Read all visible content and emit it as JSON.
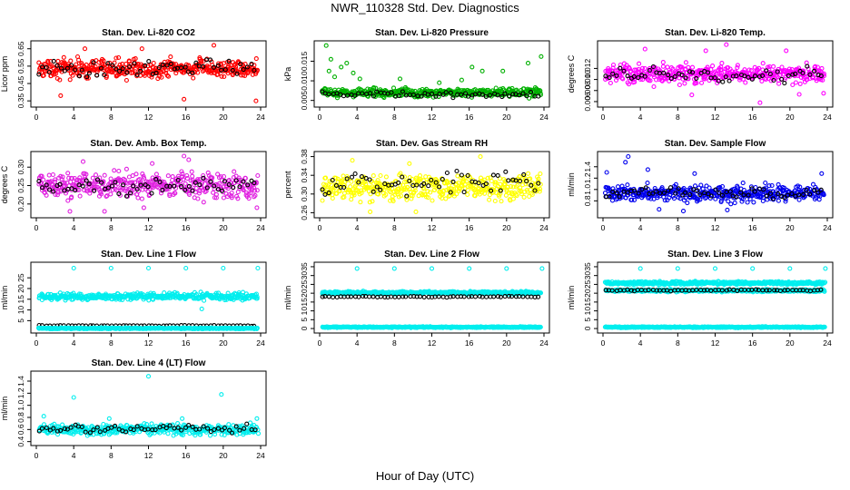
{
  "page": {
    "title": "NWR_110328  Std. Dev. Diagnostics",
    "xlabel": "Hour of Day (UTC)"
  },
  "chart_data": [
    {
      "id": "co2",
      "type": "scatter",
      "title": "Stan. Dev. Li-820 CO2",
      "ylabel": "Licor ppm",
      "xlim": [
        0,
        24
      ],
      "ylim": [
        0.33,
        0.68
      ],
      "xticks": [
        "0",
        "4",
        "8",
        "12",
        "16",
        "20",
        "24"
      ],
      "yticks": [
        "0.35",
        "0.45",
        "0.55",
        "0.65"
      ],
      "series": [
        {
          "color": "#ff0000",
          "band": [
            0.46,
            0.61
          ],
          "outliers": [
            [
              5.2,
              0.65
            ],
            [
              11.3,
              0.65
            ],
            [
              15.8,
              0.36
            ],
            [
              19.0,
              0.67
            ],
            [
              23.5,
              0.35
            ],
            [
              2.6,
              0.38
            ]
          ]
        },
        {
          "color": "#000000",
          "band": [
            0.47,
            0.6
          ],
          "outliers": []
        }
      ]
    },
    {
      "id": "pressure",
      "type": "scatter",
      "title": "Stan. Dev. Li-820 Pressure",
      "ylabel": "kPa",
      "xlim": [
        0,
        24
      ],
      "ylim": [
        0.004,
        0.0195
      ],
      "xticks": [
        "0",
        "4",
        "8",
        "12",
        "16",
        "20",
        "24"
      ],
      "yticks": [
        "0.005",
        "0.010",
        "0.015"
      ],
      "series": [
        {
          "color": "#00b000",
          "band": [
            0.0055,
            0.0085
          ],
          "outliers": [
            [
              0.7,
              0.019
            ],
            [
              1.0,
              0.0125
            ],
            [
              2.3,
              0.0135
            ],
            [
              2.9,
              0.0145
            ],
            [
              3.6,
              0.012
            ],
            [
              1.6,
              0.011
            ],
            [
              4.3,
              0.0105
            ],
            [
              8.6,
              0.0105
            ],
            [
              12.8,
              0.0095
            ],
            [
              15.2,
              0.0102
            ],
            [
              16.3,
              0.0135
            ],
            [
              17.4,
              0.0125
            ],
            [
              19.6,
              0.0125
            ],
            [
              22.3,
              0.0145
            ],
            [
              23.7,
              0.0162
            ],
            [
              1.2,
              0.0155
            ]
          ]
        },
        {
          "color": "#000000",
          "band": [
            0.0055,
            0.0075
          ],
          "outliers": []
        }
      ]
    },
    {
      "id": "temp",
      "type": "scatter",
      "title": "Stan. Dev. Li-820 Temp.",
      "ylabel": "degrees C",
      "xlim": [
        0,
        24
      ],
      "ylim": [
        0.0055,
        0.0165
      ],
      "xticks": [
        "0",
        "4",
        "8",
        "12",
        "16",
        "20",
        "24"
      ],
      "yticks": [
        "0.006",
        "0.008",
        "0.010",
        "0.012"
      ],
      "series": [
        {
          "color": "#ff00ff",
          "band": [
            0.0085,
            0.0135
          ],
          "outliers": [
            [
              13.2,
              0.0163
            ],
            [
              16.8,
              0.0058
            ],
            [
              11.0,
              0.0152
            ],
            [
              19.6,
              0.0152
            ],
            [
              9.5,
              0.0072
            ],
            [
              23.6,
              0.0075
            ],
            [
              4.5,
              0.0155
            ],
            [
              21.0,
              0.0073
            ]
          ]
        },
        {
          "color": "#000000",
          "band": [
            0.0088,
            0.0128
          ],
          "outliers": []
        }
      ]
    },
    {
      "id": "ambbox",
      "type": "scatter",
      "title": "Stan. Dev. Amb. Box Temp.",
      "ylabel": "degrees C",
      "xlim": [
        0,
        24
      ],
      "ylim": [
        0.17,
        0.335
      ],
      "xticks": [
        "0",
        "4",
        "8",
        "12",
        "16",
        "20",
        "24"
      ],
      "yticks": [
        "0.20",
        "0.25",
        "0.30"
      ],
      "series": [
        {
          "color": "#e020e0",
          "band": [
            0.2,
            0.3
          ],
          "outliers": [
            [
              15.8,
              0.33
            ],
            [
              16.3,
              0.32
            ],
            [
              5.0,
              0.315
            ],
            [
              12.4,
              0.31
            ],
            [
              3.6,
              0.18
            ],
            [
              7.3,
              0.18
            ],
            [
              11.5,
              0.19
            ],
            [
              23.6,
              0.19
            ]
          ]
        },
        {
          "color": "#000000",
          "band": [
            0.215,
            0.28
          ],
          "outliers": []
        }
      ]
    },
    {
      "id": "rh",
      "type": "scatter",
      "title": "Stan. Dev. Gas Stream RH",
      "ylabel": "percent",
      "xlim": [
        0,
        24
      ],
      "ylim": [
        0.255,
        0.385
      ],
      "xticks": [
        "0",
        "4",
        "8",
        "12",
        "16",
        "20",
        "24"
      ],
      "yticks": [
        "0.26",
        "0.30",
        "0.34",
        "0.38"
      ],
      "series": [
        {
          "color": "#ffff00",
          "band": [
            0.275,
            0.355
          ],
          "outliers": [
            [
              17.2,
              0.38
            ],
            [
              3.5,
              0.372
            ],
            [
              9.6,
              0.365
            ],
            [
              10.3,
              0.262
            ],
            [
              5.4,
              0.262
            ]
          ]
        },
        {
          "color": "#000000",
          "band": [
            0.285,
            0.36
          ],
          "outliers": []
        }
      ]
    },
    {
      "id": "sampleflow",
      "type": "scatter",
      "title": "Stan. Dev. Sample Flow",
      "ylabel": "ml/min",
      "xlim": [
        0,
        24
      ],
      "ylim": [
        0.55,
        1.62
      ],
      "xticks": [
        "0",
        "4",
        "8",
        "12",
        "16",
        "20",
        "24"
      ],
      "yticks": [
        "0.8",
        "1.0",
        "1.2",
        "1.4"
      ],
      "series": [
        {
          "color": "#0000ee",
          "band": [
            0.72,
            1.15
          ],
          "outliers": [
            [
              2.7,
              1.58
            ],
            [
              2.4,
              1.48
            ],
            [
              0.4,
              1.3
            ],
            [
              4.8,
              1.35
            ],
            [
              9.8,
              1.28
            ],
            [
              8.6,
              0.62
            ],
            [
              13.3,
              0.64
            ],
            [
              23.4,
              1.28
            ],
            [
              6.0,
              0.65
            ]
          ]
        },
        {
          "color": "#000000",
          "band": [
            0.8,
            1.08
          ],
          "outliers": []
        }
      ]
    },
    {
      "id": "line1",
      "type": "scatter",
      "title": "Stan. Dev. Line 1 Flow",
      "ylabel": "ml/min",
      "xlim": [
        0,
        24
      ],
      "ylim": [
        0.5,
        31
      ],
      "xticks": [
        "0",
        "4",
        "8",
        "12",
        "16",
        "20",
        "24"
      ],
      "yticks": [
        "5",
        "10",
        "15",
        "20",
        "25"
      ],
      "series": [
        {
          "color": "#00eeee",
          "band": [
            14.0,
            18.5
          ],
          "outliers": [
            [
              4.0,
              29.5
            ],
            [
              8.0,
              29.5
            ],
            [
              12.0,
              29.5
            ],
            [
              16.0,
              29.5
            ],
            [
              20.0,
              29.5
            ],
            [
              23.7,
              29.5
            ],
            [
              17.7,
              10.5
            ]
          ]
        },
        {
          "color": "#000000",
          "band": [
            2.4,
            2.9
          ],
          "outliers": []
        },
        {
          "color": "#00eeee",
          "band": [
            1.0,
            1.8
          ],
          "outliers": []
        }
      ]
    },
    {
      "id": "line2",
      "type": "scatter",
      "title": "Stan. Dev. Line 2 Flow",
      "ylabel": "ml/min",
      "xlim": [
        0,
        24
      ],
      "ylim": [
        -1,
        36
      ],
      "xticks": [
        "0",
        "4",
        "8",
        "12",
        "16",
        "20",
        "24"
      ],
      "yticks": [
        "0",
        "5",
        "10",
        "15",
        "20",
        "25",
        "30",
        "35"
      ],
      "series": [
        {
          "color": "#00eeee",
          "band": [
            19.0,
            21.5
          ],
          "outliers": [
            [
              4.0,
              34.0
            ],
            [
              8.0,
              34.0
            ],
            [
              12.0,
              34.0
            ],
            [
              16.0,
              34.0
            ],
            [
              20.0,
              34.0
            ],
            [
              23.8,
              34.0
            ]
          ]
        },
        {
          "color": "#000000",
          "band": [
            17.5,
            18.5
          ],
          "outliers": []
        },
        {
          "color": "#00eeee",
          "band": [
            0.3,
            1.2
          ],
          "outliers": []
        }
      ]
    },
    {
      "id": "line3",
      "type": "scatter",
      "title": "Stan. Dev. Line 3 Flow",
      "ylabel": "ml/min",
      "xlim": [
        0,
        24
      ],
      "ylim": [
        -1,
        36
      ],
      "xticks": [
        "0",
        "4",
        "8",
        "12",
        "16",
        "20",
        "24"
      ],
      "yticks": [
        "0",
        "5",
        "10",
        "15",
        "20",
        "25",
        "30",
        "35"
      ],
      "series": [
        {
          "color": "#00eeee",
          "band": [
            24.5,
            27.0
          ],
          "outliers": [
            [
              4.0,
              34.0
            ],
            [
              8.0,
              34.0
            ],
            [
              12.0,
              34.0
            ],
            [
              16.0,
              34.0
            ],
            [
              20.0,
              34.0
            ],
            [
              23.8,
              34.0
            ]
          ]
        },
        {
          "color": "#00eeee",
          "band": [
            20.5,
            22.5
          ],
          "outliers": []
        },
        {
          "color": "#000000",
          "band": [
            21.0,
            22.3
          ],
          "outliers": []
        },
        {
          "color": "#00eeee",
          "band": [
            0.3,
            1.2
          ],
          "outliers": []
        }
      ]
    },
    {
      "id": "line4",
      "type": "scatter",
      "title": "Stan. Dev. Line 4 (LT) Flow",
      "ylabel": "ml/min",
      "xlim": [
        0,
        24
      ],
      "ylim": [
        0.38,
        1.52
      ],
      "xticks": [
        "0",
        "4",
        "8",
        "12",
        "16",
        "20",
        "24"
      ],
      "yticks": [
        "0.4",
        "0.6",
        "0.8",
        "1.0",
        "1.2",
        "1.4"
      ],
      "series": [
        {
          "color": "#00eeee",
          "band": [
            0.48,
            0.72
          ],
          "outliers": [
            [
              12.0,
              1.48
            ],
            [
              4.0,
              1.13
            ],
            [
              19.8,
              1.18
            ],
            [
              0.8,
              0.82
            ],
            [
              7.8,
              0.78
            ],
            [
              15.6,
              0.78
            ],
            [
              23.6,
              0.78
            ]
          ]
        },
        {
          "color": "#000000",
          "band": [
            0.5,
            0.72
          ],
          "outliers": []
        }
      ]
    }
  ]
}
